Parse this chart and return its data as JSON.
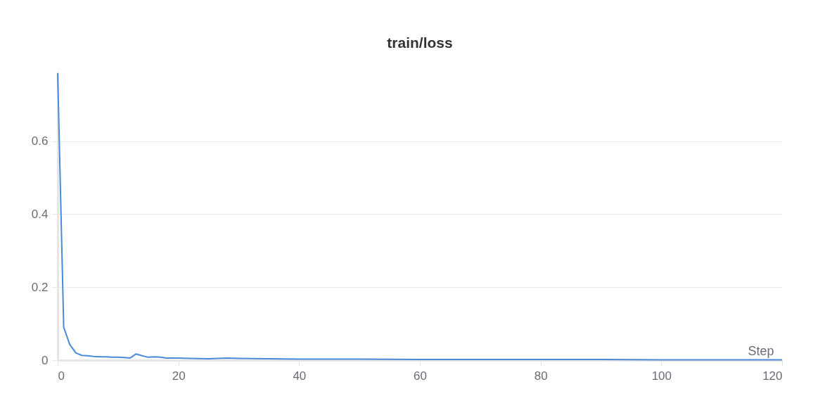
{
  "chart_data": {
    "type": "line",
    "title": "train/loss",
    "xlabel": "Step",
    "x": [
      0,
      1,
      2,
      3,
      4,
      5,
      6,
      7,
      8,
      9,
      10,
      11,
      12,
      13,
      14,
      15,
      16,
      17,
      18,
      19,
      20,
      22,
      25,
      28,
      30,
      35,
      40,
      45,
      50,
      60,
      70,
      80,
      90,
      100,
      110,
      120
    ],
    "series": [
      {
        "color": "#4a8ad8",
        "values": [
          0.786,
          0.09,
          0.043,
          0.02,
          0.013,
          0.012,
          0.01,
          0.009,
          0.009,
          0.008,
          0.008,
          0.007,
          0.006,
          0.017,
          0.012,
          0.008,
          0.009,
          0.008,
          0.006,
          0.006,
          0.006,
          0.005,
          0.004,
          0.006,
          0.005,
          0.004,
          0.003,
          0.003,
          0.003,
          0.002,
          0.002,
          0.002,
          0.002,
          0.001,
          0.001,
          0.001
        ]
      }
    ],
    "xlim": [
      0,
      120
    ],
    "xticks": [
      0,
      20,
      40,
      60,
      80,
      100,
      120
    ],
    "ylim": [
      0,
      0.79
    ],
    "yticks": [
      0,
      0.2,
      0.4,
      0.6
    ],
    "grid": "y",
    "marker": "none",
    "line_style": "solid"
  }
}
